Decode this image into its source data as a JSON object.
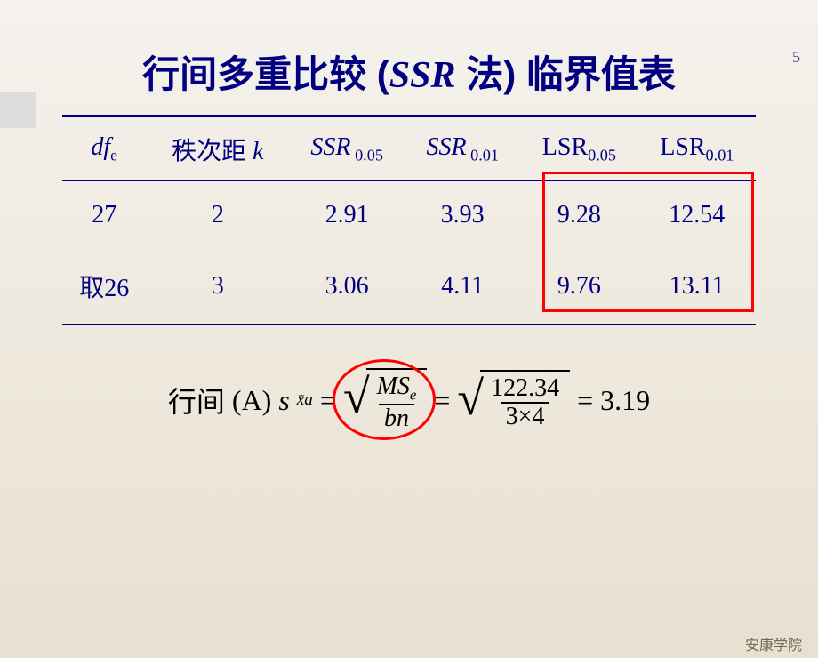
{
  "page_number": "5",
  "title": {
    "pre": "行间多重比较 (",
    "ssr": "SSR",
    "mid": " 法) 临界值表"
  },
  "table": {
    "headers": {
      "dfe_it": "df",
      "dfe_sub": "e",
      "k_cn": "秩次距 ",
      "k_it": "k",
      "ssr005_it": "SSR",
      "ssr005_sub": " 0.05",
      "ssr001_it": "SSR",
      "ssr001_sub": " 0.01",
      "lsr005": "LSR",
      "lsr005_sub": "0.05",
      "lsr001": "LSR",
      "lsr001_sub": "0.01"
    },
    "rows": [
      {
        "dfe": "27",
        "k": "2",
        "ssr005": "2.91",
        "ssr001": "3.93",
        "lsr005": "9.28",
        "lsr001": "12.54"
      },
      {
        "dfe": "取26",
        "k": "3",
        "ssr005": "3.06",
        "ssr001": "4.11",
        "lsr005": "9.76",
        "lsr001": "13.11"
      }
    ]
  },
  "formula": {
    "prefix_cn": "行间",
    "prefix_paren": "(A)",
    "s": "s",
    "s_sub": "x̄a",
    "eq": "=",
    "frac1_num_it": "MS",
    "frac1_num_sub": "e",
    "frac1_den": "bn",
    "frac2_num": "122.34",
    "frac2_den": "3×4",
    "result": "3.19"
  },
  "footer": "安康学院",
  "colors": {
    "text_main": "#000080",
    "highlight_border": "#ff0000",
    "background_top": "#f5f2ed",
    "background_bottom": "#e8e0d0"
  }
}
